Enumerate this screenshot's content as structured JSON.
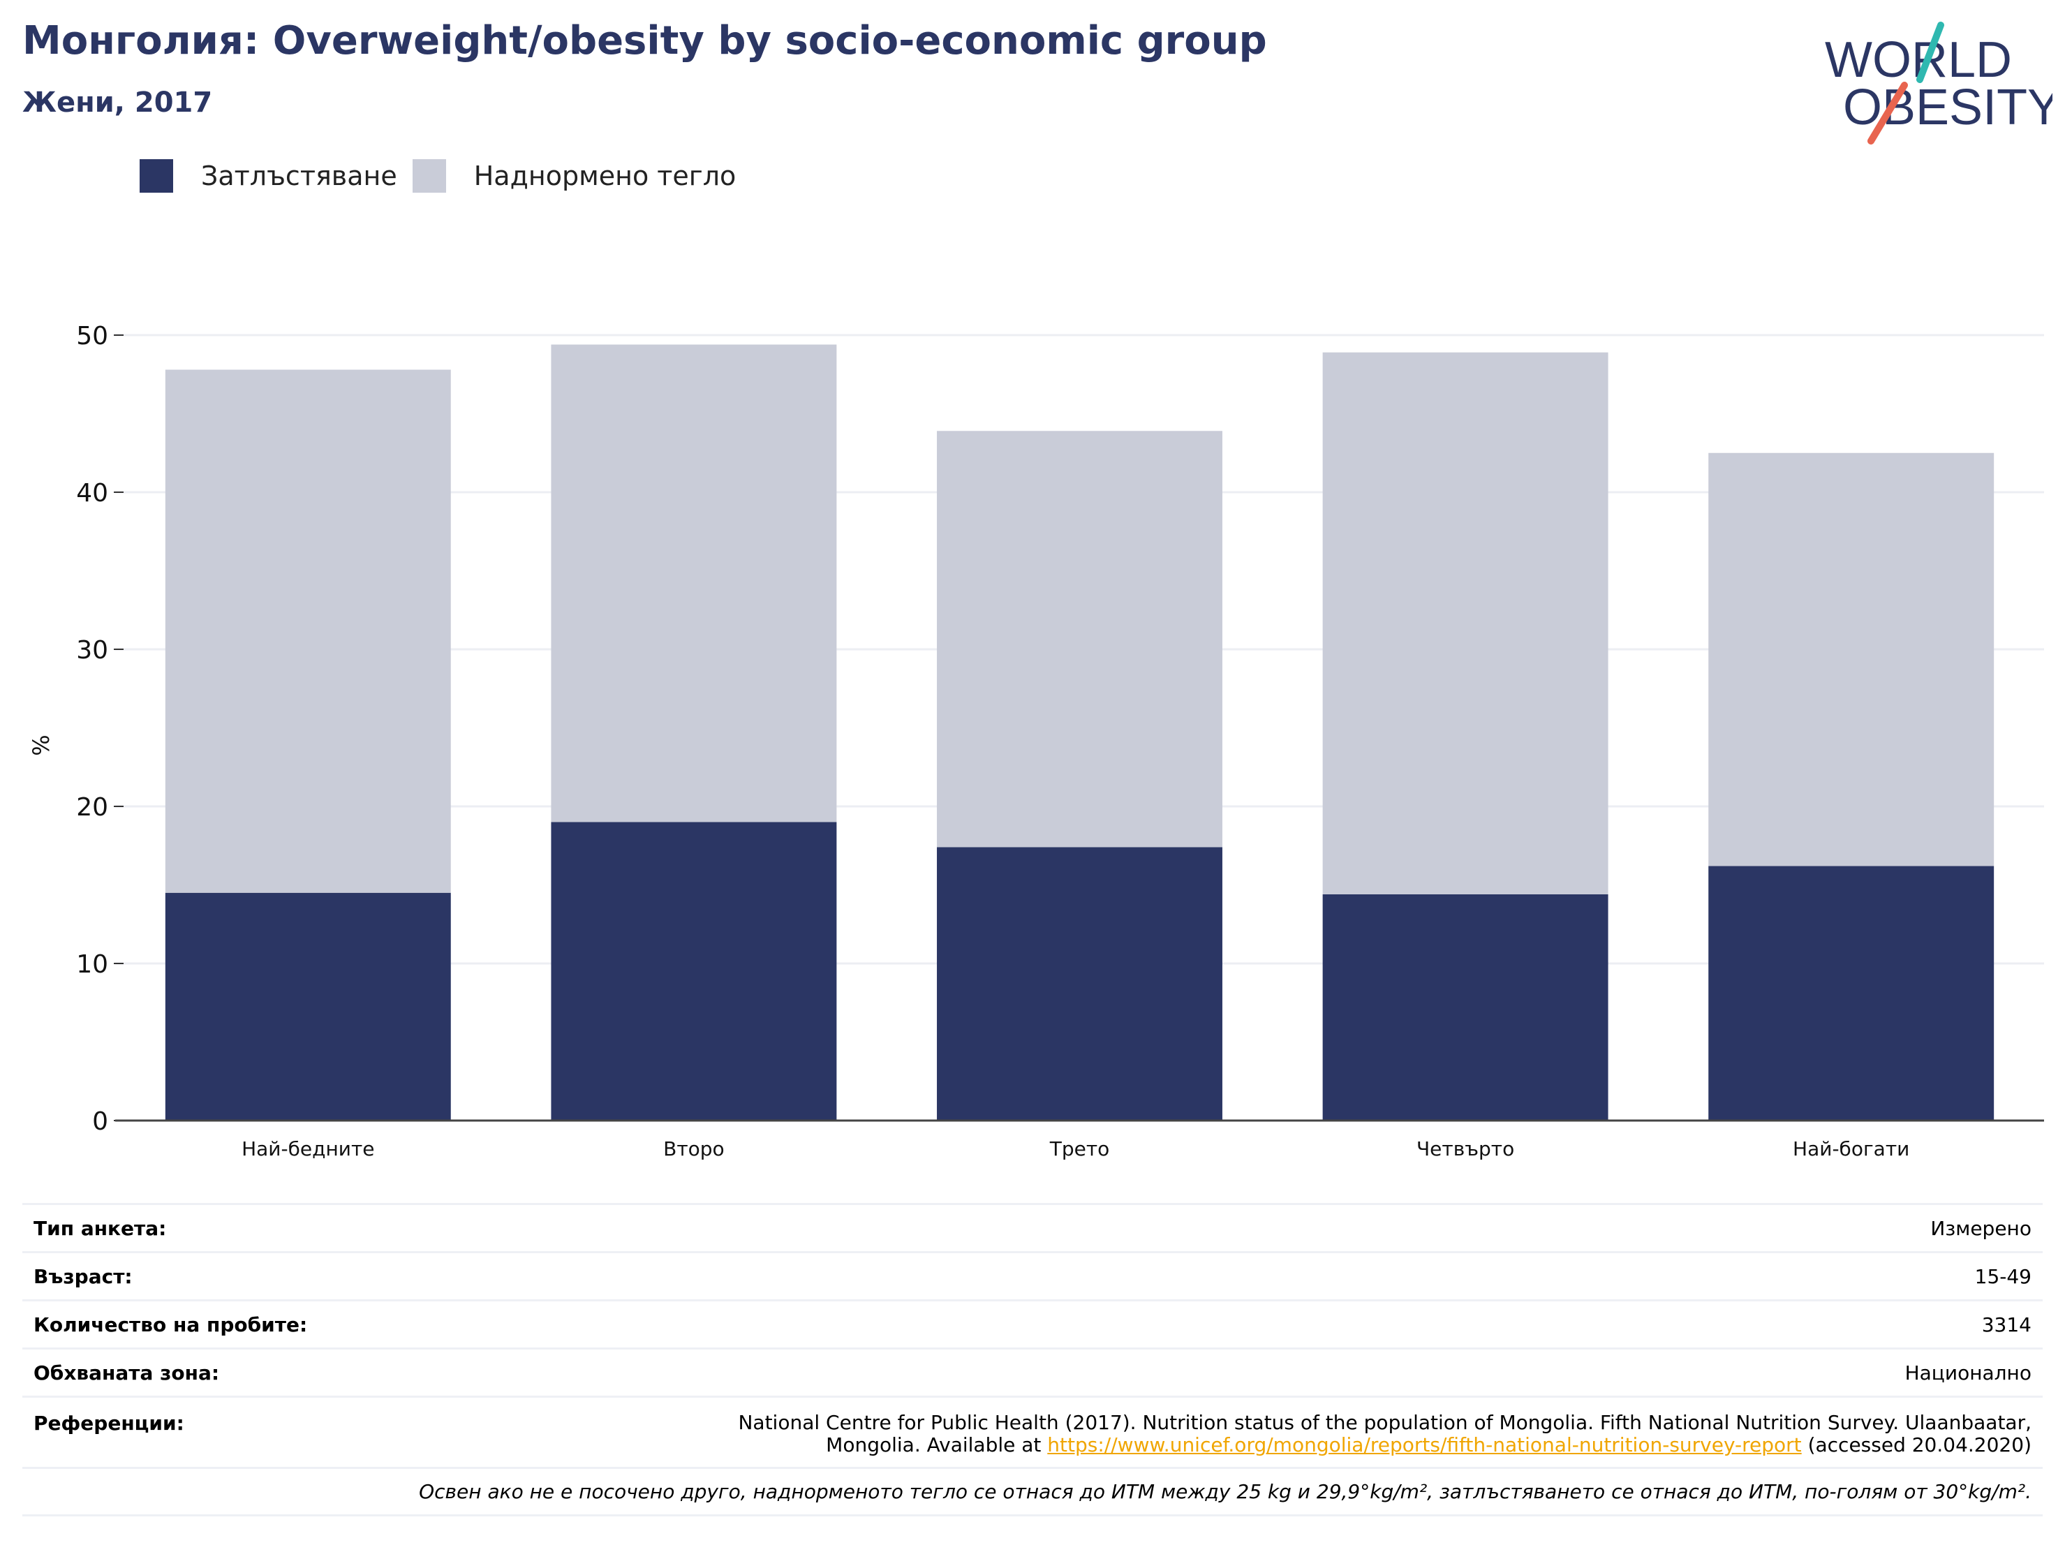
{
  "title": "Монголия: Overweight/obesity by socio-economic group",
  "subtitle": "Жени, 2017",
  "logo": {
    "line1": "WORLD",
    "line2": "OBESITY"
  },
  "colors": {
    "obesity": "#2b3664",
    "overweight": "#c9ccd8",
    "title": "#2b3664",
    "link": "#f0a500"
  },
  "chart_data": {
    "type": "bar",
    "stacked": true,
    "categories": [
      "Най-бедните",
      "Второ",
      "Трето",
      "Четвърто",
      "Най-богати"
    ],
    "series": [
      {
        "name": "Затлъстяване",
        "values": [
          14.5,
          19.0,
          17.4,
          14.4,
          16.2
        ]
      },
      {
        "name": "Наднормено тегло",
        "values": [
          33.3,
          30.4,
          26.5,
          34.5,
          26.3
        ]
      }
    ],
    "ylabel": "%",
    "ylim": [
      0,
      50
    ],
    "yticks": [
      0,
      10,
      20,
      30,
      40,
      50
    ],
    "grid": true,
    "legend": "top-left"
  },
  "info": {
    "survey_type_label": "Тип анкета:",
    "survey_type": "Измерено",
    "age_label": "Възраст:",
    "age": "15-49",
    "sample_label": "Количество на пробите:",
    "sample": "3314",
    "area_label": "Обхваната зона:",
    "area": "Национално",
    "ref_label": "Референции:",
    "ref_line1": "National Centre for Public Health (2017). Nutrition status of the population of Mongolia. Fifth National Nutrition Survey. Ulaanbaatar,",
    "ref_line2_pre": "Mongolia. Available at ",
    "ref_link": "https://www.unicef.org/mongolia/reports/fifth-national-nutrition-survey-report",
    "ref_line2_post": " (accessed 20.04.2020)",
    "note": "Освен ако не е посочено друго, наднорменото тегло се отнася до ИТМ между 25 kg и 29,9°kg/m², затлъстяването се отнася до ИТМ, по-голям от 30°kg/m²."
  }
}
